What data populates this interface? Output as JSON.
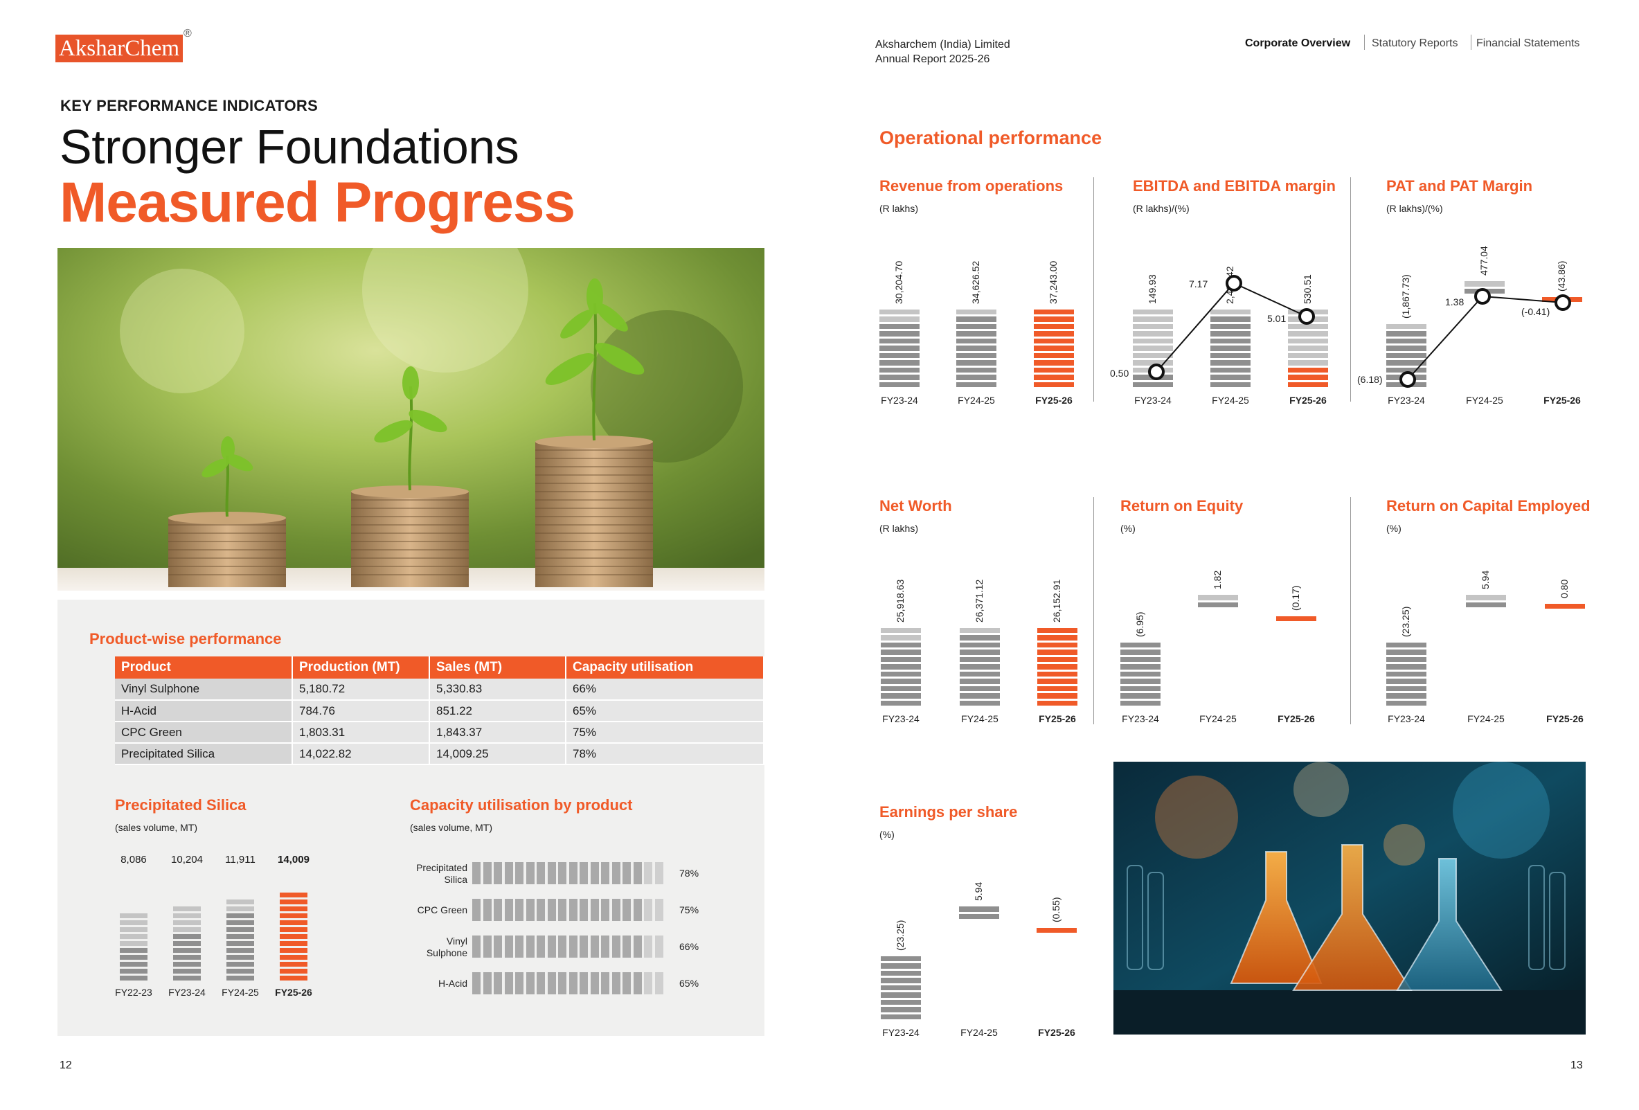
{
  "brand": {
    "logo_text": "AksharChem",
    "reg_mark": "®"
  },
  "header": {
    "company": "Aksharchem (India) Limited",
    "report": "Annual Report 2025-26",
    "nav": [
      "Corporate Overview",
      "Statutory Reports",
      "Financial Statements"
    ],
    "nav_active": 0
  },
  "left": {
    "kicker": "KEY PERFORMANCE INDICATORS",
    "title_line1": "Stronger Foundations",
    "title_line2": "Measured Progress",
    "photo_desc_icon": "coin-stacks-plants-photo",
    "product_section_title": "Product-wise performance",
    "product_table": {
      "columns": [
        "Product",
        "Production (MT)",
        "Sales (MT)",
        "Capacity utilisation"
      ],
      "rows": [
        [
          "Vinyl Sulphone",
          "5,180.72",
          "5,330.83",
          "66%"
        ],
        [
          "H-Acid",
          "784.76",
          "851.22",
          "65%"
        ],
        [
          "CPC Green",
          "1,803.31",
          "1,843.37",
          "75%"
        ],
        [
          "Precipitated Silica",
          "14,022.82",
          "14,009.25",
          "78%"
        ]
      ]
    },
    "silica": {
      "title": "Precipitated Silica",
      "unit": "(sales volume, MT)",
      "labels": [
        "8,086",
        "10,204",
        "11,911",
        "14,009"
      ],
      "years": [
        "FY22-23",
        "FY23-24",
        "FY24-25",
        "FY25-26"
      ]
    },
    "capacity": {
      "title": "Capacity utilisation by product",
      "unit": "(sales volume, MT)",
      "items": [
        {
          "name_l1": "Precipitated",
          "name_l2": "Silica",
          "pct": "78%"
        },
        {
          "name_l1": "CPC Green",
          "name_l2": "",
          "pct": "75%"
        },
        {
          "name_l1": "Vinyl",
          "name_l2": "Sulphone",
          "pct": "66%"
        },
        {
          "name_l1": "H-Acid",
          "name_l2": "",
          "pct": "65%"
        }
      ]
    },
    "page_number": "12"
  },
  "right": {
    "section_title": "Operational performance",
    "years": [
      "FY23-24",
      "FY24-25",
      "FY25-26"
    ],
    "charts": [
      {
        "id": "revenue",
        "title": "Revenue from operations",
        "unit": "(R lakhs)",
        "labels": [
          "30,204.70",
          "34,626.52",
          "37,243.00"
        ]
      },
      {
        "id": "ebitda",
        "title": "EBITDA and EBITDA margin",
        "unit": "(R lakhs)/(%)",
        "labels": [
          "149.93",
          "2,483.42",
          "530.51"
        ],
        "line_labels": [
          "0.50",
          "7.17",
          "5.01"
        ]
      },
      {
        "id": "pat",
        "title": "PAT and PAT Margin",
        "unit": "(R lakhs)/(%)",
        "labels": [
          "(1,867.73)",
          "477.04",
          "(43.86)"
        ],
        "line_labels": [
          "(6.18)",
          "1.38",
          "(-0.41)"
        ]
      },
      {
        "id": "networth",
        "title": "Net Worth",
        "unit": "(R lakhs)",
        "labels": [
          "25,918.63",
          "26,371.12",
          "26,152.91"
        ]
      },
      {
        "id": "roe",
        "title": "Return on Equity",
        "unit": "(%)",
        "labels": [
          "(6.95)",
          "1.82",
          "(0.17)"
        ]
      },
      {
        "id": "roce",
        "title": "Return on Capital Employed",
        "unit": "(%)",
        "labels": [
          "(23.25)",
          "5.94",
          "0.80"
        ]
      },
      {
        "id": "eps",
        "title": "Earnings per share",
        "unit": "(%)",
        "labels": [
          "(23.25)",
          "5.94",
          "(0.55)"
        ]
      }
    ],
    "photo_desc_icon": "laboratory-flasks-photo",
    "page_number": "13"
  },
  "colors": {
    "accent": "#f05a28",
    "bar_dark": "#8f8f8f",
    "bar_light": "#c4c4c4"
  }
}
